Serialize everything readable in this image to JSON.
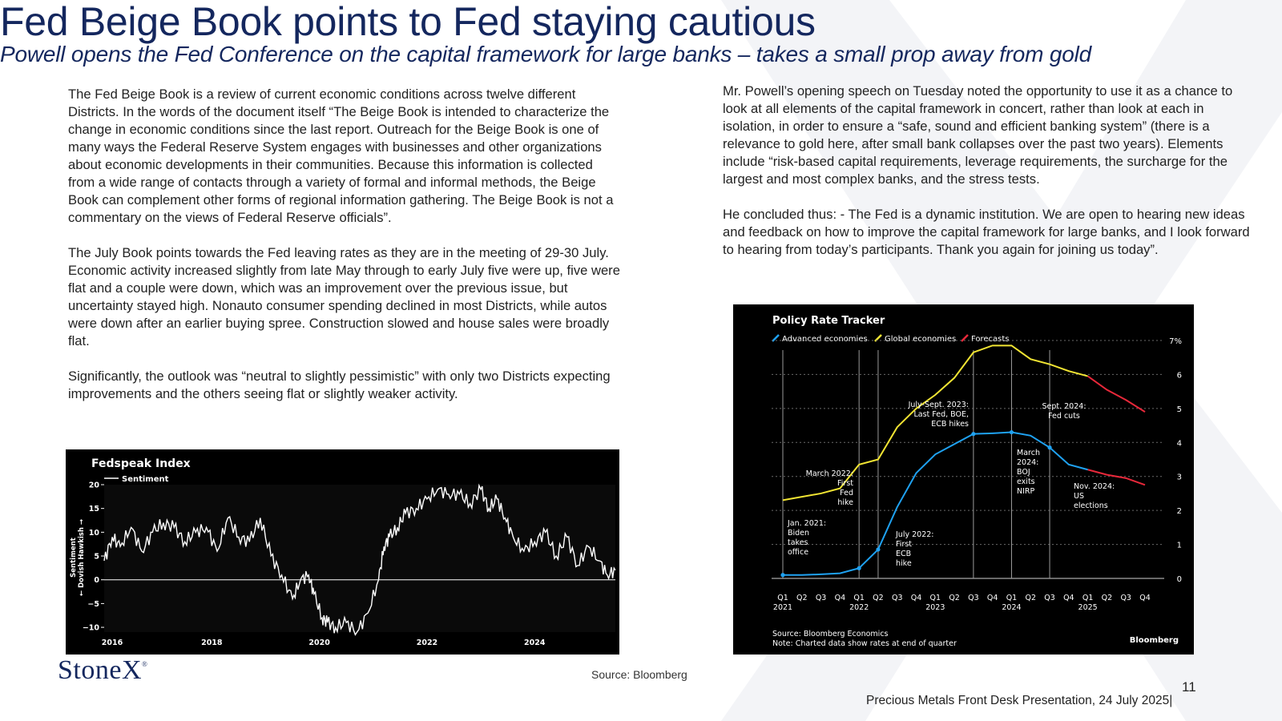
{
  "title": "Fed Beige Book points to Fed staying cautious",
  "subtitle": "Powell opens the Fed Conference on the capital framework for large banks – takes a small prop away from gold",
  "left_column": [
    "The Fed Beige Book is a review of current economic conditions across twelve different Districts.  In the words of the document itself “The Beige Book is intended to characterize the change in economic conditions since the last report. Outreach for the Beige Book is one of many ways the Federal Reserve System engages with businesses and other organizations about economic developments in their communities. Because this information is collected from a wide range of contacts through a variety of formal and informal methods, the Beige Book can complement other forms of regional information gathering. The Beige Book is not a commentary on the views of Federal Reserve officials”.",
    "The July Book points towards the Fed leaving rates as they are in the meeting of 29-30 July.  Economic activity increased slightly from late May through to early July five were up, five were flat and a couple were down, which was an improvement over the previous issue, but uncertainty stayed high.  Nonauto consumer spending declined in most Districts, while autos were down after an earlier buying spree.  Construction slowed and house sales were broadly flat.",
    "Significantly, the outlook was “neutral to slightly pessimistic” with only two Districts expecting improvements and the others seeing flat or slightly weaker activity."
  ],
  "right_column": [
    "Mr. Powell’s opening speech on Tuesday noted the opportunity to use it as a chance to look at all elements of the capital framework in concert, rather than look at each in isolation, in order to ensure a “safe, sound and efficient banking system” (there is a relevance to gold here, after small bank collapses over the past two years). Elements include “risk-based capital requirements, leverage requirements, the surcharge for the largest and most complex banks, and the stress tests.",
    "He concluded thus: -  The Fed is a dynamic institution. We are open to hearing new ideas and feedback on how to improve the capital framework for large banks, and I look forward to hearing from today’s participants. Thank you again for joining us today”."
  ],
  "logo_text": "StoneX",
  "logo_mark": "®",
  "source": "Source: Bloomberg",
  "page_number": "11",
  "footer": "Precious Metals Front Desk Presentation, 24 July 2025|",
  "colors": {
    "navy": "#14275e",
    "advanced": "#1fa2f2",
    "global": "#f2e533",
    "forecast": "#e8283a"
  },
  "chart_data": [
    {
      "type": "line",
      "title": "Fedspeak Index",
      "legend": [
        "Sentiment"
      ],
      "ylabel": "← Dovish   Hawkish →",
      "ylabel_top": "Sentiment",
      "ylim": [
        -11,
        20
      ],
      "yticks": [
        20,
        15,
        10,
        5,
        0,
        -5,
        -10
      ],
      "xlim": [
        2016,
        2025.5
      ],
      "xticks": [
        "2016",
        "2018",
        "2020",
        "2022",
        "2024"
      ],
      "series": [
        {
          "name": "Sentiment",
          "x": [
            2016.0,
            2016.15,
            2016.3,
            2016.5,
            2016.7,
            2016.9,
            2017.1,
            2017.3,
            2017.5,
            2017.7,
            2017.9,
            2018.1,
            2018.3,
            2018.5,
            2018.7,
            2018.9,
            2019.1,
            2019.3,
            2019.5,
            2019.65,
            2019.8,
            2019.9,
            2020.05,
            2020.15,
            2020.3,
            2020.5,
            2020.7,
            2020.9,
            2021.1,
            2021.2,
            2021.3,
            2021.45,
            2021.6,
            2021.8,
            2022.0,
            2022.2,
            2022.4,
            2022.6,
            2022.8,
            2023.0,
            2023.15,
            2023.3,
            2023.45,
            2023.6,
            2023.8,
            2024.0,
            2024.2,
            2024.4,
            2024.6,
            2024.8,
            2025.0,
            2025.2,
            2025.35,
            2025.5
          ],
          "y": [
            4,
            9,
            7,
            11,
            6,
            10,
            12,
            11,
            8,
            10,
            11,
            6,
            13,
            9,
            8,
            13,
            5,
            1,
            -4,
            0,
            1,
            -3,
            -8,
            -9,
            -10,
            -9,
            -11,
            -7,
            0,
            7,
            9,
            11,
            14,
            15,
            17,
            19,
            18,
            18,
            16,
            19,
            15,
            17,
            13,
            9,
            6,
            8,
            10,
            5,
            9,
            3,
            7,
            4,
            1,
            2
          ]
        }
      ]
    },
    {
      "type": "line",
      "title": "Policy Rate Tracker",
      "legend": [
        "Advanced economies",
        "Global economies",
        "Forecasts"
      ],
      "ylim": [
        0,
        7
      ],
      "yticks": [
        "0",
        "1",
        "2",
        "3",
        "4",
        "5",
        "6",
        "7%"
      ],
      "quarters": [
        "Q1",
        "Q2",
        "Q3",
        "Q4",
        "Q1",
        "Q2",
        "Q3",
        "Q4",
        "Q1",
        "Q2",
        "Q3",
        "Q4",
        "Q1",
        "Q2",
        "Q3",
        "Q4",
        "Q1",
        "Q2",
        "Q3",
        "Q4"
      ],
      "years": [
        "2021",
        "2022",
        "2023",
        "2024",
        "2025"
      ],
      "series": [
        {
          "name": "Advanced economies",
          "values": [
            0.1,
            0.1,
            0.12,
            0.15,
            0.3,
            0.85,
            2.1,
            3.1,
            3.65,
            3.95,
            4.25,
            4.27,
            4.3,
            4.2,
            3.85,
            3.35,
            3.2,
            3.05,
            2.95,
            2.75
          ],
          "forecast_from": 16
        },
        {
          "name": "Global economies",
          "values": [
            2.3,
            2.4,
            2.5,
            2.65,
            3.35,
            3.5,
            4.45,
            5.0,
            5.4,
            5.9,
            6.65,
            6.85,
            6.85,
            6.45,
            6.3,
            6.1,
            5.95,
            5.55,
            5.25,
            4.9
          ],
          "forecast_from": 16
        }
      ],
      "annotations": [
        {
          "text": [
            "Jan. 2021:",
            "Biden",
            "takes",
            "office"
          ]
        },
        {
          "text": [
            "March 2022:",
            "First",
            "Fed",
            "hike"
          ]
        },
        {
          "text": [
            "July 2022:",
            "First",
            "ECB",
            "hike"
          ]
        },
        {
          "text": [
            "July-Sept. 2023:",
            "Last Fed, BOE,",
            "ECB hikes"
          ]
        },
        {
          "text": [
            "March",
            "2024:",
            "BOJ",
            "exits",
            "NIRP"
          ]
        },
        {
          "text": [
            "Sept. 2024:",
            "Fed cuts"
          ]
        },
        {
          "text": [
            "Nov. 2024:",
            "US",
            "elections"
          ]
        }
      ],
      "source": "Source: Bloomberg Economics",
      "note": "Note: Charted data show rates at end of quarter",
      "brand": "Bloomberg"
    }
  ]
}
